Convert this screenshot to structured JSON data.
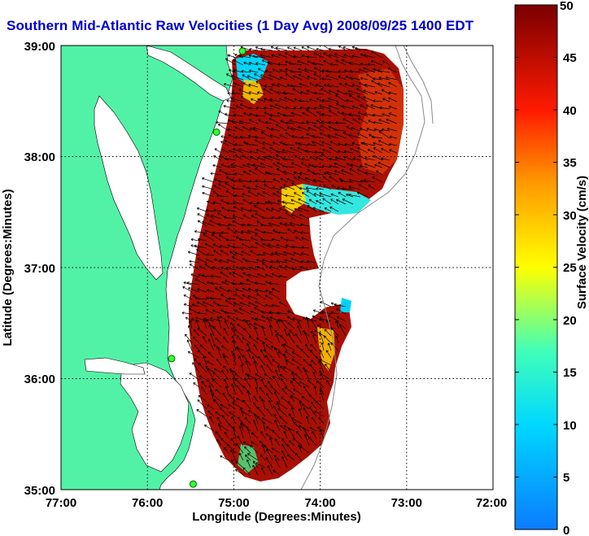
{
  "chart_data": {
    "type": "vector-map",
    "title": "Southern Mid-Atlantic Raw Velocities (1 Day Avg) 2008/09/25 1400 EDT",
    "xlabel": "Longitude (Degrees:Minutes)",
    "ylabel": "Latitude (Degrees:Minutes)",
    "xlim": [
      -77,
      -72
    ],
    "ylim": [
      35,
      39
    ],
    "x_ticks": [
      "77:00",
      "76:00",
      "75:00",
      "74:00",
      "73:00",
      "72:00"
    ],
    "y_ticks": [
      "35:00",
      "36:00",
      "37:00",
      "38:00",
      "39:00"
    ],
    "grid": true,
    "colorbar": {
      "label": "Surface Velocity (cm/s)",
      "range": [
        0,
        50
      ],
      "ticks": [
        "0",
        "5",
        "10",
        "15",
        "20",
        "25",
        "30",
        "35",
        "40",
        "45",
        "50"
      ]
    },
    "stations": [
      {
        "lon": -74.9,
        "lat": 38.95
      },
      {
        "lon": -75.2,
        "lat": 38.22
      },
      {
        "lon": -75.72,
        "lat": 36.18
      },
      {
        "lon": -75.47,
        "lat": 35.05
      }
    ]
  }
}
